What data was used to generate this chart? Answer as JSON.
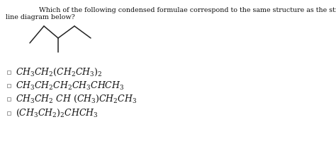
{
  "question_line1": "Which of the following condensed formulae correspond to the same structure as the structure shown in the",
  "question_line2": "line diagram below?",
  "options": [
    "$CH_3CH_2(CH_2CH_3)_2$",
    "$CH_3CH_2CH_2CH_3CHCH_3$",
    "$CH_3CH_2\\ CH\\ (CH_3)CH_2CH_3$",
    "$(CH_3CH_2)_2CHCH_3$"
  ],
  "bg_color": "#ffffff",
  "text_color": "#111111",
  "question_fontsize": 6.8,
  "option_fontsize": 9.0,
  "line_color": "#222222",
  "checkbox_color": "#888888"
}
